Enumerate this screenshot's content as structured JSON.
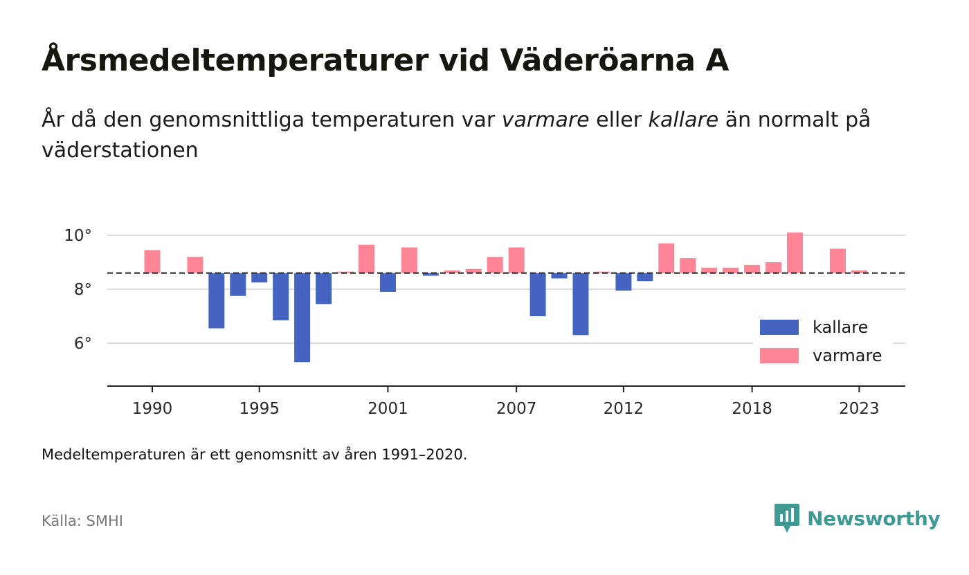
{
  "title": "Årsmedeltemperaturer vid Väderöarna A",
  "subtitle": {
    "part1": "År då den genomsnittliga temperaturen var ",
    "warmer": "varmare",
    "part2": " eller ",
    "colder": "kallare",
    "part3": " än normalt på väderstationen"
  },
  "note": "Medeltemperaturen är ett genomsnitt av åren 1991–2020.",
  "source": "Källa: SMHI",
  "brand": {
    "name": "Newsworthy",
    "icon": "newsworthy-logo-icon",
    "color": "#3f9a94"
  },
  "colors": {
    "colder": "#4364c0",
    "warmer": "#fd8596",
    "grid": "#dcdcdc",
    "axis": "#222222",
    "baseline": "#333333"
  },
  "chart_data": {
    "type": "bar",
    "x": [
      1990,
      1991,
      1992,
      1993,
      1994,
      1995,
      1996,
      1997,
      1998,
      1999,
      2000,
      2001,
      2002,
      2003,
      2004,
      2005,
      2006,
      2007,
      2008,
      2009,
      2010,
      2011,
      2012,
      2013,
      2014,
      2015,
      2016,
      2017,
      2018,
      2019,
      2020,
      2021,
      2022,
      2023
    ],
    "values": [
      9.45,
      null,
      9.2,
      6.55,
      7.75,
      8.25,
      6.85,
      5.3,
      7.45,
      8.65,
      9.65,
      7.9,
      9.55,
      8.5,
      8.7,
      8.75,
      9.2,
      9.55,
      7.0,
      8.4,
      6.3,
      8.65,
      7.95,
      8.3,
      9.7,
      9.15,
      8.8,
      8.8,
      8.9,
      9.0,
      10.1,
      null,
      9.5,
      8.7
    ],
    "baseline": 8.6,
    "ylim": [
      4.5,
      10.3
    ],
    "yticks": [
      6,
      8,
      10
    ],
    "ytick_labels": [
      "6°",
      "8°",
      "10°"
    ],
    "xticks": [
      1990,
      1995,
      2001,
      2007,
      2012,
      2018,
      2023
    ],
    "xtick_labels": [
      "1990",
      "1995",
      "2001",
      "2007",
      "2012",
      "2018",
      "2023"
    ],
    "legend": [
      {
        "key": "colder",
        "label": "kallare"
      },
      {
        "key": "warmer",
        "label": "varmare"
      }
    ],
    "legend_position": "bottom-right",
    "grid": true
  }
}
